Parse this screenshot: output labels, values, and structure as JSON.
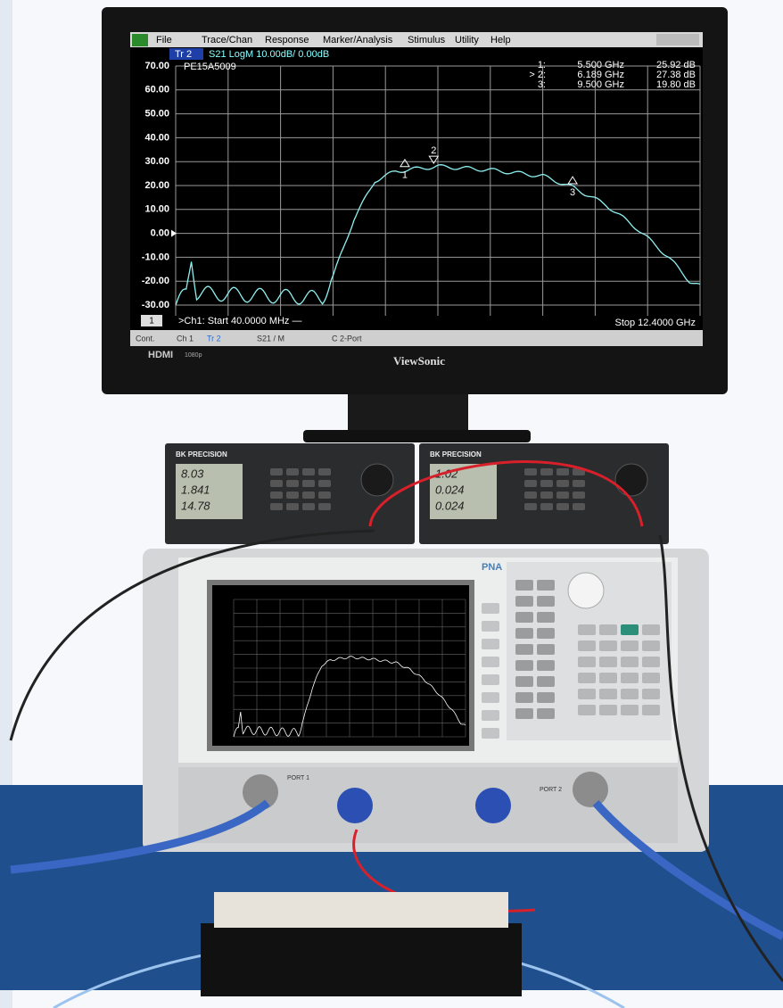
{
  "monitor": {
    "brand": "ViewSonic",
    "hdmi": "HDMI",
    "hdmi_note": "1080p"
  },
  "screen": {
    "menu": [
      "File",
      "Trace/Chan",
      "Response",
      "Marker/Analysis",
      "Stimulus",
      "Utility",
      "Help"
    ],
    "trace_tab": "Tr 2",
    "trace_info": "S21 LogM 10.00dB/  0.00dB",
    "device": "PE15A5009",
    "y_labels": [
      "70.00",
      "60.00",
      "50.00",
      "40.00",
      "30.00",
      "20.00",
      "10.00",
      "0.00",
      "-10.00",
      "-20.00",
      "-30.00"
    ],
    "markers": [
      {
        "id": "1:",
        "freq": "5.500 GHz",
        "value": "25.92 dB"
      },
      {
        "id": "> 2:",
        "freq": "6.189 GHz",
        "value": "27.38 dB"
      },
      {
        "id": "3:",
        "freq": "9.500 GHz",
        "value": "19.80 dB"
      }
    ],
    "marker_tags": [
      "1",
      "2",
      "3"
    ],
    "channel": "1",
    "start": ">Ch1:  Start  40.0000 MHz —",
    "stop": "Stop  12.4000 GHz",
    "status": [
      "Cont.",
      "Ch 1",
      "Tr 2",
      "S21 / M",
      "C  2-Port"
    ]
  },
  "power_supplies": [
    {
      "brand": "BK PRECISION",
      "readings": [
        "8.03",
        "1.841",
        "14.78"
      ]
    },
    {
      "brand": "BK PRECISION",
      "readings": [
        "1.02",
        "0.024",
        "0.024"
      ]
    }
  ],
  "analyzer": {
    "label": "PNA",
    "port1": "PORT 1",
    "port2": "PORT 2"
  }
}
